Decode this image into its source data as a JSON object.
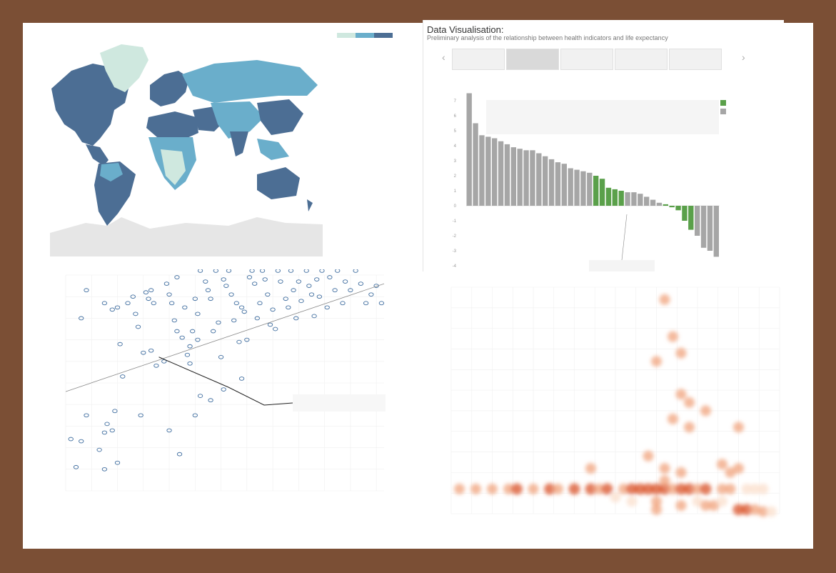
{
  "map_legend": {
    "title": "",
    "colors": [
      "#cfe8df",
      "#6aaecb",
      "#4c6e94"
    ],
    "min_label": "",
    "max_label": ""
  },
  "bar_panel": {
    "title": "Data Visualisation:",
    "subtitle": "Preliminary analysis of the relationship between health indicators and life expectancy",
    "tabs": [
      "",
      "",
      "",
      "",
      ""
    ],
    "active_tab": 1,
    "prev_arrow": "‹",
    "next_arrow": "›"
  },
  "chart_data": [
    {
      "type": "bar",
      "title": "",
      "xlabel": "",
      "ylabel": "",
      "ylim": [
        -4,
        8
      ],
      "yticks": [
        7,
        6,
        5,
        4,
        3,
        2,
        1,
        0,
        -1,
        -2,
        -3,
        -4
      ],
      "values": [
        7.5,
        5.5,
        4.7,
        4.6,
        4.5,
        4.3,
        4.1,
        3.9,
        3.8,
        3.7,
        3.7,
        3.5,
        3.3,
        3.1,
        2.9,
        2.8,
        2.5,
        2.4,
        2.3,
        2.2,
        2.0,
        1.8,
        1.2,
        1.1,
        1.0,
        0.9,
        0.9,
        0.8,
        0.6,
        0.4,
        0.2,
        0.1,
        -0.1,
        -0.3,
        -1.0,
        -1.6,
        -2.0,
        -2.8,
        -3.0,
        -3.4
      ],
      "group_colors": {
        "gray": "#a6a6a6",
        "green": "#5aa04a"
      },
      "color_groups": [
        "gray",
        "gray",
        "gray",
        "gray",
        "gray",
        "gray",
        "gray",
        "gray",
        "gray",
        "gray",
        "gray",
        "gray",
        "gray",
        "gray",
        "gray",
        "gray",
        "gray",
        "gray",
        "gray",
        "gray",
        "green",
        "green",
        "green",
        "green",
        "green",
        "gray",
        "gray",
        "gray",
        "gray",
        "gray",
        "gray",
        "green",
        "green",
        "green",
        "green",
        "green",
        "gray",
        "gray",
        "gray",
        "gray"
      ],
      "legend": {
        "title": "",
        "entries": []
      },
      "annotation": {
        "title": "",
        "text": ""
      },
      "callout": {
        "text": ""
      }
    },
    {
      "type": "scatter",
      "title": "",
      "xlabel": "",
      "ylabel": "",
      "xlim": [
        0,
        12.3
      ],
      "ylim": [
        -5,
        95
      ],
      "marker_color": "#3f6d9f",
      "trend": [
        [
          0,
          41
        ],
        [
          12.3,
          91
        ]
      ],
      "callout_point": [
        3.6,
        57
      ],
      "annotation": {
        "text": ""
      },
      "points": [
        [
          0.2,
          19
        ],
        [
          0.6,
          18
        ],
        [
          0.8,
          30
        ],
        [
          0.6,
          75
        ],
        [
          0.8,
          88
        ],
        [
          1.3,
          14
        ],
        [
          1.5,
          22
        ],
        [
          1.6,
          26
        ],
        [
          1.9,
          32
        ],
        [
          1.8,
          23
        ],
        [
          1.5,
          82
        ],
        [
          1.8,
          79
        ],
        [
          2.0,
          80
        ],
        [
          2.2,
          48
        ],
        [
          2.1,
          63
        ],
        [
          2.4,
          82
        ],
        [
          2.6,
          85
        ],
        [
          2.7,
          77
        ],
        [
          2.8,
          71
        ],
        [
          2.9,
          30
        ],
        [
          3.0,
          59
        ],
        [
          3.1,
          87
        ],
        [
          3.2,
          84
        ],
        [
          3.3,
          88
        ],
        [
          3.4,
          82
        ],
        [
          3.3,
          60
        ],
        [
          3.5,
          53
        ],
        [
          3.8,
          55
        ],
        [
          3.9,
          91
        ],
        [
          4.0,
          86
        ],
        [
          4.1,
          82
        ],
        [
          4.2,
          74
        ],
        [
          4.3,
          69
        ],
        [
          4.3,
          94
        ],
        [
          4.6,
          80
        ],
        [
          4.5,
          66
        ],
        [
          4.7,
          58
        ],
        [
          4.8,
          62
        ],
        [
          4.8,
          54
        ],
        [
          4.9,
          69
        ],
        [
          5.0,
          84
        ],
        [
          5.1,
          77
        ],
        [
          5.1,
          65
        ],
        [
          5.2,
          97
        ],
        [
          5.4,
          92
        ],
        [
          5.5,
          88
        ],
        [
          5.6,
          84
        ],
        [
          5.7,
          69
        ],
        [
          5.8,
          97
        ],
        [
          5.9,
          73
        ],
        [
          6.0,
          57
        ],
        [
          6.1,
          93
        ],
        [
          6.2,
          90
        ],
        [
          6.3,
          97
        ],
        [
          6.4,
          86
        ],
        [
          6.5,
          74
        ],
        [
          6.6,
          82
        ],
        [
          6.7,
          64
        ],
        [
          6.8,
          80
        ],
        [
          6.9,
          78
        ],
        [
          7.0,
          65
        ],
        [
          7.1,
          94
        ],
        [
          7.2,
          97
        ],
        [
          7.3,
          91
        ],
        [
          7.4,
          75
        ],
        [
          7.5,
          82
        ],
        [
          7.6,
          97
        ],
        [
          7.7,
          93
        ],
        [
          7.8,
          86
        ],
        [
          7.9,
          72
        ],
        [
          8.0,
          79
        ],
        [
          8.1,
          70
        ],
        [
          8.2,
          97
        ],
        [
          8.3,
          92
        ],
        [
          8.5,
          84
        ],
        [
          8.6,
          80
        ],
        [
          8.7,
          97
        ],
        [
          8.8,
          88
        ],
        [
          8.9,
          75
        ],
        [
          9.0,
          92
        ],
        [
          9.1,
          83
        ],
        [
          9.3,
          97
        ],
        [
          9.4,
          90
        ],
        [
          9.5,
          86
        ],
        [
          9.6,
          76
        ],
        [
          9.7,
          93
        ],
        [
          9.8,
          85
        ],
        [
          9.9,
          97
        ],
        [
          10.1,
          80
        ],
        [
          10.2,
          94
        ],
        [
          10.4,
          88
        ],
        [
          10.5,
          97
        ],
        [
          10.7,
          82
        ],
        [
          10.8,
          92
        ],
        [
          11.0,
          88
        ],
        [
          11.2,
          97
        ],
        [
          11.4,
          91
        ],
        [
          11.6,
          82
        ],
        [
          11.8,
          86
        ],
        [
          12.0,
          90
        ],
        [
          12.2,
          82
        ],
        [
          5.2,
          39
        ],
        [
          6.8,
          47
        ],
        [
          4.4,
          12
        ],
        [
          4.0,
          23
        ],
        [
          5.0,
          30
        ],
        [
          5.6,
          37
        ],
        [
          6.1,
          42
        ],
        [
          2.0,
          8
        ],
        [
          1.5,
          5
        ],
        [
          0.4,
          6
        ]
      ]
    },
    {
      "type": "heatmap",
      "title": "",
      "xlabel": "",
      "ylabel": "",
      "xlim": [
        44,
        84
      ],
      "ylim": [
        0,
        5.5
      ],
      "colors": {
        "core": "#d9532a",
        "mid": "#f0a37c",
        "edge": "#fbe1d0"
      },
      "band_y": 0.6,
      "blobs": [
        [
          45,
          0.6,
          "mid"
        ],
        [
          47,
          0.6,
          "mid"
        ],
        [
          49,
          0.6,
          "mid"
        ],
        [
          51,
          0.6,
          "mid"
        ],
        [
          52,
          0.6,
          "core"
        ],
        [
          54,
          0.6,
          "mid"
        ],
        [
          56,
          0.6,
          "core"
        ],
        [
          57,
          0.6,
          "mid"
        ],
        [
          59,
          0.6,
          "core"
        ],
        [
          61,
          0.6,
          "core"
        ],
        [
          62,
          0.6,
          "mid"
        ],
        [
          63,
          0.6,
          "core"
        ],
        [
          65,
          0.6,
          "mid"
        ],
        [
          66,
          0.6,
          "core"
        ],
        [
          67,
          0.6,
          "core"
        ],
        [
          68,
          0.6,
          "core"
        ],
        [
          69,
          0.6,
          "core"
        ],
        [
          70,
          0.6,
          "core"
        ],
        [
          71,
          0.6,
          "mid"
        ],
        [
          72,
          0.6,
          "core"
        ],
        [
          73,
          0.6,
          "core"
        ],
        [
          74,
          0.6,
          "mid"
        ],
        [
          75,
          0.6,
          "core"
        ],
        [
          77,
          0.6,
          "mid"
        ],
        [
          78,
          0.6,
          "mid"
        ],
        [
          80,
          0.6,
          "edge"
        ],
        [
          81,
          0.6,
          "edge"
        ],
        [
          82,
          0.6,
          "edge"
        ],
        [
          79,
          0.1,
          "core"
        ],
        [
          80,
          0.1,
          "core"
        ],
        [
          81,
          0.1,
          "mid"
        ],
        [
          82,
          0.05,
          "mid"
        ],
        [
          83,
          0.05,
          "edge"
        ],
        [
          70,
          5.2,
          "mid"
        ],
        [
          71,
          4.3,
          "mid"
        ],
        [
          72,
          3.9,
          "mid"
        ],
        [
          69,
          3.7,
          "mid"
        ],
        [
          72,
          2.9,
          "mid"
        ],
        [
          73,
          2.7,
          "mid"
        ],
        [
          75,
          2.5,
          "mid"
        ],
        [
          71,
          2.3,
          "mid"
        ],
        [
          73,
          2.1,
          "mid"
        ],
        [
          79,
          2.1,
          "mid"
        ],
        [
          68,
          1.4,
          "mid"
        ],
        [
          61,
          1.1,
          "mid"
        ],
        [
          70,
          1.1,
          "mid"
        ],
        [
          72,
          1.0,
          "mid"
        ],
        [
          77,
          1.2,
          "mid"
        ],
        [
          78,
          1.0,
          "mid"
        ],
        [
          79,
          1.1,
          "mid"
        ],
        [
          70,
          0.8,
          "mid"
        ],
        [
          69,
          0.3,
          "mid"
        ],
        [
          66,
          0.3,
          "edge"
        ],
        [
          74,
          0.3,
          "edge"
        ],
        [
          75,
          0.2,
          "mid"
        ],
        [
          76,
          0.2,
          "mid"
        ],
        [
          77,
          0.3,
          "edge"
        ],
        [
          64,
          0.4,
          "edge"
        ],
        [
          69,
          0.1,
          "mid"
        ],
        [
          72,
          0.2,
          "mid"
        ]
      ]
    }
  ]
}
